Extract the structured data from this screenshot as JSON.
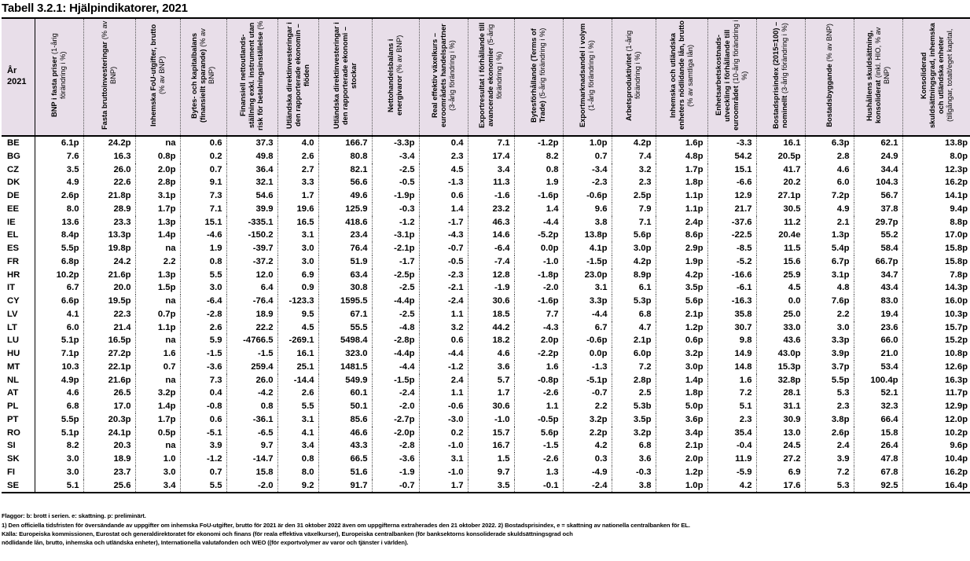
{
  "title": "Tabell 3.2.1: Hjälpindikatorer, 2021",
  "colors": {
    "header_bg": "#e8dee9"
  },
  "table": {
    "year_label": "År",
    "year_value": "2021",
    "columns": [
      {
        "main": "BNP i fasta priser",
        "sub": "(1-årig förändring i %)"
      },
      {
        "main": "Fasta bruttoinvesteringar",
        "sub": "(% av BNP)"
      },
      {
        "main": "Inhemska FoU-utgifter, brutto",
        "sub": "(% av BNP)"
      },
      {
        "main": "Bytes- och kapitalbalans (finansiellt sparande)",
        "sub": "(% av BNP)"
      },
      {
        "main": "Finansiell nettoutlands-ställning exkl. instrument utan risk för betalningsinställelse",
        "sub": "(%"
      },
      {
        "main": "Utländska direktinvesteringar i den rapporterade ekonomin – flöden",
        "sub": ""
      },
      {
        "main": "Utländska direktinvesteringar i den rapporterade ekonomi – stockar",
        "sub": ""
      },
      {
        "main": "Nettohandelsbalans i energivaror",
        "sub": "(% av BNP)"
      },
      {
        "main": "Real effektiv växelkurs – euroområdets handelspartner",
        "sub": "(3-årig förändring i %)"
      },
      {
        "main": "Exportresultat i förhållande till avancerade ekonomier",
        "sub": "(5-årig förändring i %)"
      },
      {
        "main": "Bytesförhållande (Terms of Trade)",
        "sub": "(5-årig förändring i %)"
      },
      {
        "main": "Exportmarknadsandel i volym",
        "sub": "(1-årig förändring i %)"
      },
      {
        "main": "Arbetsproduktivitet",
        "sub": "(1-årig förändring i %)"
      },
      {
        "main": "Inhemska och utländska enheters nödlidande lån, brutto",
        "sub": "(% av samtliga lån)"
      },
      {
        "main": "Enhetsarbetskostnads-utveckling i förhållande till euroområdet",
        "sub": "(10-årig förändring i %)"
      },
      {
        "main": "Bostadsprisindex (2015=100) – nominellt",
        "sub": "(3-årig förändring i %)"
      },
      {
        "main": "Bostadsbyggande",
        "sub": "(% av BNP)"
      },
      {
        "main": "Hushållens skuldsättning, konsoliderat",
        "sub": "(inkl. HIO, % av BNP)"
      },
      {
        "main": "Konsoliderad skuldsättningsgrad, inhemska och utländska enheter",
        "sub": "(tillgångar, totalt/eget kapital,"
      }
    ],
    "rows": [
      {
        "code": "BE",
        "values": [
          "6.1p",
          "24.2p",
          "na",
          "0.6",
          "37.3",
          "4.0",
          "166.7",
          "-3.3p",
          "0.4",
          "7.1",
          "-1.2p",
          "1.0p",
          "4.2p",
          "1.6p",
          "-3.3",
          "16.1",
          "6.3p",
          "62.1",
          "13.8p"
        ]
      },
      {
        "code": "BG",
        "values": [
          "7.6",
          "16.3",
          "0.8p",
          "0.2",
          "49.8",
          "2.6",
          "80.8",
          "-3.4",
          "2.3",
          "17.4",
          "8.2",
          "0.7",
          "7.4",
          "4.8p",
          "54.2",
          "20.5p",
          "2.8",
          "24.9",
          "8.0p"
        ]
      },
      {
        "code": "CZ",
        "values": [
          "3.5",
          "26.0",
          "2.0p",
          "0.7",
          "36.4",
          "2.7",
          "82.1",
          "-2.5",
          "4.5",
          "3.4",
          "0.8",
          "-3.4",
          "3.2",
          "1.7p",
          "15.1",
          "41.7",
          "4.6",
          "34.4",
          "12.3p"
        ]
      },
      {
        "code": "DK",
        "values": [
          "4.9",
          "22.6",
          "2.8p",
          "9.1",
          "32.1",
          "3.3",
          "56.6",
          "-0.5",
          "-1.3",
          "11.3",
          "1.9",
          "-2.3",
          "2.3",
          "1.8p",
          "-6.6",
          "20.2",
          "6.0",
          "104.3",
          "16.2p"
        ]
      },
      {
        "code": "DE",
        "values": [
          "2.6p",
          "21.8p",
          "3.1p",
          "7.3",
          "54.6",
          "1.7",
          "49.6",
          "-1.9p",
          "0.6",
          "-1.6",
          "-1.6p",
          "-0.6p",
          "2.5p",
          "1.1p",
          "12.9",
          "27.1p",
          "7.2p",
          "56.7",
          "14.1p"
        ]
      },
      {
        "code": "EE",
        "values": [
          "8.0",
          "28.9",
          "1.7p",
          "7.1",
          "39.9",
          "19.6",
          "125.9",
          "-0.3",
          "1.4",
          "23.2",
          "1.4",
          "9.6",
          "7.9",
          "1.1p",
          "21.7",
          "30.5",
          "4.9",
          "37.8",
          "9.4p"
        ]
      },
      {
        "code": "IE",
        "values": [
          "13.6",
          "23.3",
          "1.3p",
          "15.1",
          "-335.1",
          "16.5",
          "418.6",
          "-1.2",
          "-1.7",
          "46.3",
          "-4.4",
          "3.8",
          "7.1",
          "2.4p",
          "-37.6",
          "11.2",
          "2.1",
          "29.7p",
          "8.8p"
        ]
      },
      {
        "code": "EL",
        "values": [
          "8.4p",
          "13.3p",
          "1.4p",
          "-4.6",
          "-150.2",
          "3.1",
          "23.4",
          "-3.1p",
          "-4.3",
          "14.6",
          "-5.2p",
          "13.8p",
          "5.6p",
          "8.6p",
          "-22.5",
          "20.4e",
          "1.3p",
          "55.2",
          "17.0p"
        ]
      },
      {
        "code": "ES",
        "values": [
          "5.5p",
          "19.8p",
          "na",
          "1.9",
          "-39.7",
          "3.0",
          "76.4",
          "-2.1p",
          "-0.7",
          "-6.4",
          "0.0p",
          "4.1p",
          "3.0p",
          "2.9p",
          "-8.5",
          "11.5",
          "5.4p",
          "58.4",
          "15.8p"
        ]
      },
      {
        "code": "FR",
        "values": [
          "6.8p",
          "24.2",
          "2.2",
          "0.8",
          "-37.2",
          "3.0",
          "51.9",
          "-1.7",
          "-0.5",
          "-7.4",
          "-1.0",
          "-1.5p",
          "4.2p",
          "1.9p",
          "-5.2",
          "15.6",
          "6.7p",
          "66.7p",
          "15.8p"
        ]
      },
      {
        "code": "HR",
        "values": [
          "10.2p",
          "21.6p",
          "1.3p",
          "5.5",
          "12.0",
          "6.9",
          "63.4",
          "-2.5p",
          "-2.3",
          "12.8",
          "-1.8p",
          "23.0p",
          "8.9p",
          "4.2p",
          "-16.6",
          "25.9",
          "3.1p",
          "34.7",
          "7.8p"
        ]
      },
      {
        "code": "IT",
        "values": [
          "6.7",
          "20.0",
          "1.5p",
          "3.0",
          "6.4",
          "0.9",
          "30.8",
          "-2.5",
          "-2.1",
          "-1.9",
          "-2.0",
          "3.1",
          "6.1",
          "3.5p",
          "-6.1",
          "4.5",
          "4.8",
          "43.4",
          "14.3p"
        ]
      },
      {
        "code": "CY",
        "values": [
          "6.6p",
          "19.5p",
          "na",
          "-6.4",
          "-76.4",
          "-123.3",
          "1595.5",
          "-4.4p",
          "-2.4",
          "30.6",
          "-1.6p",
          "3.3p",
          "5.3p",
          "5.6p",
          "-16.3",
          "0.0",
          "7.6p",
          "83.0",
          "16.0p"
        ]
      },
      {
        "code": "LV",
        "values": [
          "4.1",
          "22.3",
          "0.7p",
          "-2.8",
          "18.9",
          "9.5",
          "67.1",
          "-2.5",
          "1.1",
          "18.5",
          "7.7",
          "-4.4",
          "6.8",
          "2.1p",
          "35.8",
          "25.0",
          "2.2",
          "19.4",
          "10.3p"
        ]
      },
      {
        "code": "LT",
        "values": [
          "6.0",
          "21.4",
          "1.1p",
          "2.6",
          "22.2",
          "4.5",
          "55.5",
          "-4.8",
          "3.2",
          "44.2",
          "-4.3",
          "6.7",
          "4.7",
          "1.2p",
          "30.7",
          "33.0",
          "3.0",
          "23.6",
          "15.7p"
        ]
      },
      {
        "code": "LU",
        "values": [
          "5.1p",
          "16.5p",
          "na",
          "5.9",
          "-4766.5",
          "-269.1",
          "5498.4",
          "-2.8p",
          "0.6",
          "18.2",
          "2.0p",
          "-0.6p",
          "2.1p",
          "0.6p",
          "9.8",
          "43.6",
          "3.3p",
          "66.0",
          "15.2p"
        ]
      },
      {
        "code": "HU",
        "values": [
          "7.1p",
          "27.2p",
          "1.6",
          "-1.5",
          "-1.5",
          "16.1",
          "323.0",
          "-4.4p",
          "-4.4",
          "4.6",
          "-2.2p",
          "0.0p",
          "6.0p",
          "3.2p",
          "14.9",
          "43.0p",
          "3.9p",
          "21.0",
          "10.8p"
        ]
      },
      {
        "code": "MT",
        "values": [
          "10.3",
          "22.1p",
          "0.7",
          "-3.6",
          "259.4",
          "25.1",
          "1481.5",
          "-4.4",
          "-1.2",
          "3.6",
          "1.6",
          "-1.3",
          "7.2",
          "3.0p",
          "14.8",
          "15.3p",
          "3.7p",
          "53.4",
          "12.6p"
        ]
      },
      {
        "code": "NL",
        "values": [
          "4.9p",
          "21.6p",
          "na",
          "7.3",
          "26.0",
          "-14.4",
          "549.9",
          "-1.5p",
          "2.4",
          "5.7",
          "-0.8p",
          "-5.1p",
          "2.8p",
          "1.4p",
          "1.6",
          "32.8p",
          "5.5p",
          "100.4p",
          "16.3p"
        ]
      },
      {
        "code": "AT",
        "values": [
          "4.6",
          "26.5",
          "3.2p",
          "0.4",
          "-4.2",
          "2.6",
          "60.1",
          "-2.4",
          "1.1",
          "1.7",
          "-2.6",
          "-0.7",
          "2.5",
          "1.8p",
          "7.2",
          "28.1",
          "5.3",
          "52.1",
          "11.7p"
        ]
      },
      {
        "code": "PL",
        "values": [
          "6.8",
          "17.0",
          "1.4p",
          "-0.8",
          "0.8",
          "5.5",
          "50.1",
          "-2.0",
          "-0.6",
          "30.6",
          "1.1",
          "2.2",
          "5.3b",
          "5.0p",
          "5.1",
          "31.1",
          "2.3",
          "32.3",
          "12.9p"
        ]
      },
      {
        "code": "PT",
        "values": [
          "5.5p",
          "20.3p",
          "1.7p",
          "0.6",
          "-36.1",
          "3.1",
          "85.6",
          "-2.7p",
          "-3.0",
          "-1.0",
          "-0.5p",
          "3.2p",
          "3.5p",
          "3.6p",
          "2.3",
          "30.9",
          "3.8p",
          "66.4",
          "12.0p"
        ]
      },
      {
        "code": "RO",
        "values": [
          "5.1p",
          "24.1p",
          "0.5p",
          "-5.1",
          "-6.5",
          "4.1",
          "46.6",
          "-2.0p",
          "0.2",
          "15.7",
          "5.6p",
          "2.2p",
          "3.2p",
          "3.4p",
          "35.4",
          "13.0",
          "2.6p",
          "15.8",
          "10.2p"
        ]
      },
      {
        "code": "SI",
        "values": [
          "8.2",
          "20.3",
          "na",
          "3.9",
          "9.7",
          "3.4",
          "43.3",
          "-2.8",
          "-1.0",
          "16.7",
          "-1.5",
          "4.2",
          "6.8",
          "2.1p",
          "-0.4",
          "24.5",
          "2.4",
          "26.4",
          "9.6p"
        ]
      },
      {
        "code": "SK",
        "values": [
          "3.0",
          "18.9",
          "1.0",
          "-1.2",
          "-14.7",
          "0.8",
          "66.5",
          "-3.6",
          "3.1",
          "1.5",
          "-2.6",
          "0.3",
          "3.6",
          "2.0p",
          "11.9",
          "27.2",
          "3.9",
          "47.8",
          "10.4p"
        ]
      },
      {
        "code": "FI",
        "values": [
          "3.0",
          "23.7",
          "3.0",
          "0.7",
          "15.8",
          "8.0",
          "51.6",
          "-1.9",
          "-1.0",
          "9.7",
          "1.3",
          "-4.9",
          "-0.3",
          "1.2p",
          "-5.9",
          "6.9",
          "7.2",
          "67.8",
          "16.2p"
        ]
      },
      {
        "code": "SE",
        "values": [
          "5.1",
          "25.6",
          "3.4",
          "5.5",
          "-2.0",
          "9.2",
          "91.7",
          "-0.7",
          "1.7",
          "3.5",
          "-0.1",
          "-2.4",
          "3.8",
          "1.0p",
          "4.2",
          "17.6",
          "5.3",
          "92.5",
          "16.4p"
        ]
      }
    ]
  },
  "footnotes": [
    "Flaggor: b: brott i serien. e: skattning. p: preliminärt.",
    "1) Den officiella tidsfristen för översändande av uppgifter om inhemska FoU-utgifter, brutto för 2021 är den 31 oktober 2022 även om uppgifterna extraherades den 21 oktober 2022. 2) Bostadsprisindex, e = skattning av nationella centralbanken för EL.",
    "Källa: Europeiska kommissionen, Eurostat och generaldirektoratet för ekonomi och finans (för reala effektiva växelkurser), Europeiska centralbanken (för banksektorns konsoliderade skuldsättningsgrad och",
    "nödlidande lån, brutto, inhemska och utländska enheter), Internationella valutafonden och WEO ((för exportvolymer av varor och tjänster i världen)."
  ]
}
